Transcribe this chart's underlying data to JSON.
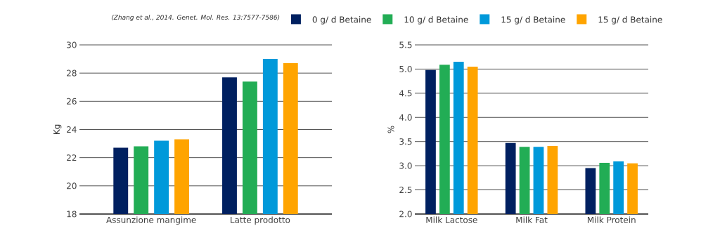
{
  "chart_data": [
    {
      "type": "bar",
      "ylabel": "Kg",
      "categories": [
        "Assunzione mangime",
        "Latte prodotto"
      ],
      "series": [
        {
          "color": "#002060",
          "values": [
            22.7,
            27.7
          ]
        },
        {
          "color": "#22ad55",
          "values": [
            22.8,
            27.4
          ]
        },
        {
          "color": "#0099da",
          "values": [
            23.2,
            29.0
          ]
        },
        {
          "color": "#ffa400",
          "values": [
            23.3,
            28.7
          ]
        }
      ],
      "ylim": [
        18,
        30
      ],
      "yticks": [
        18,
        20,
        22,
        24,
        26,
        28,
        30
      ],
      "grid": "y",
      "annotations": [
        "(Zhang et al., 2014. Genet. Mol. Res. 13:7577-7586)"
      ]
    },
    {
      "type": "bar",
      "ylabel": "%",
      "categories": [
        "Milk Lactose",
        "Milk Fat",
        "Milk Protein"
      ],
      "series": [
        {
          "name": "0 g/ d  Betaine",
          "color": "#002060",
          "values": [
            4.98,
            3.47,
            2.95
          ]
        },
        {
          "name": "10 g/ d  Betaine",
          "color": "#22ad55",
          "values": [
            5.09,
            3.39,
            3.06
          ]
        },
        {
          "name": "15 g/ d  Betaine",
          "color": "#0099da",
          "values": [
            5.15,
            3.39,
            3.09
          ]
        },
        {
          "name": "15 g/ d  Betaine",
          "color": "#ffa400",
          "values": [
            5.05,
            3.41,
            3.05
          ]
        }
      ],
      "ylim": [
        2,
        5.5
      ],
      "yticks": [
        {
          "value": 2,
          "label": "2.0"
        },
        2.5,
        {
          "value": 3,
          "label": "3.0"
        },
        3.5,
        {
          "value": 4,
          "label": "4.0"
        },
        4.5,
        {
          "value": 5,
          "label": "5.0"
        },
        5.5
      ],
      "grid": "y",
      "legend": "top"
    }
  ]
}
